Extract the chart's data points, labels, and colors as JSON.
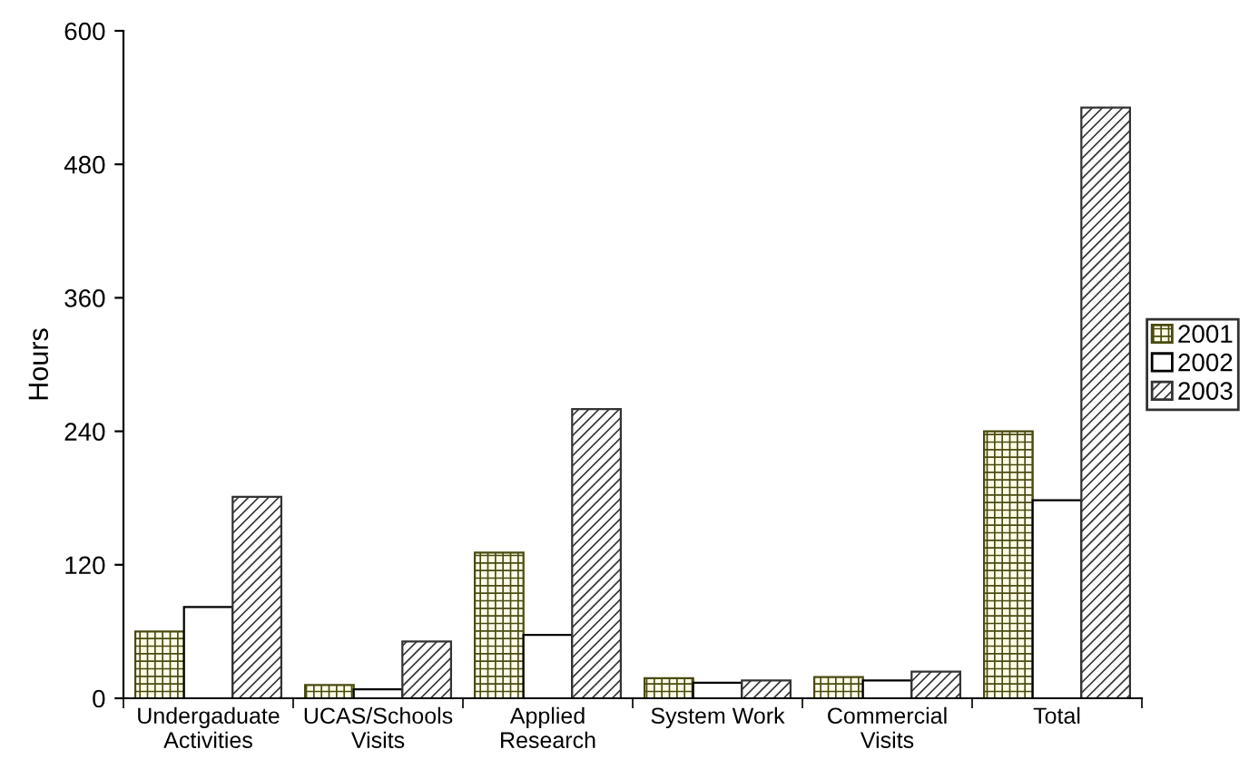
{
  "chart_data": {
    "type": "bar",
    "ylabel": "Hours",
    "categories": [
      "Undergaduate\nActivities",
      "UCAS/Schools\nVisits",
      "Applied\nResearch",
      "System Work",
      "Commercial\nVisits",
      "Total"
    ],
    "series": [
      {
        "name": "2001",
        "color": "#4a4a10",
        "values": [
          60,
          12,
          131,
          18,
          19,
          240
        ]
      },
      {
        "name": "2002",
        "color": "#ffffff",
        "values": [
          82,
          8,
          57,
          14,
          16,
          178
        ]
      },
      {
        "name": "2003",
        "color": "#333333",
        "values": [
          181,
          51,
          260,
          16,
          24,
          531
        ]
      }
    ],
    "ylim": [
      0,
      600
    ],
    "yticks": [
      0,
      120,
      240,
      360,
      480,
      600
    ],
    "grid": false,
    "legend": "right"
  }
}
